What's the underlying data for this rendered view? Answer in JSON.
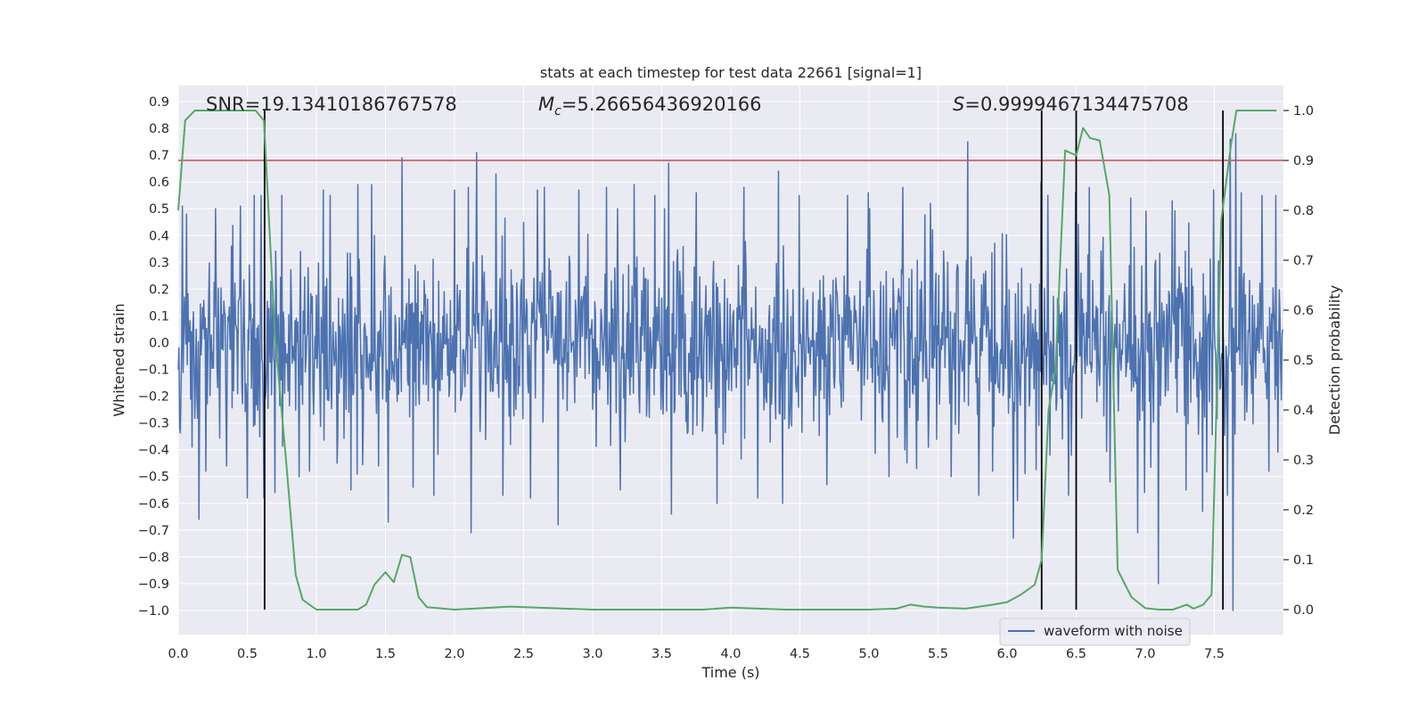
{
  "chart_data": {
    "type": "line",
    "title": "stats at each timestep for test data 22661 [signal=1]",
    "xlabel": "Time (s)",
    "ylabel": "Whitened strain",
    "ylabel_right": "Detection probability",
    "xlim": [
      0.0,
      8.0
    ],
    "ylim": [
      -1.09,
      0.96
    ],
    "ylim_right": [
      -0.05,
      1.05
    ],
    "x_ticks": [
      0.0,
      0.5,
      1.0,
      1.5,
      2.0,
      2.5,
      3.0,
      3.5,
      4.0,
      4.5,
      5.0,
      5.5,
      6.0,
      6.5,
      7.0,
      7.5
    ],
    "x_tick_labels": [
      "0.0",
      "0.5",
      "1.0",
      "1.5",
      "2.0",
      "2.5",
      "3.0",
      "3.5",
      "4.0",
      "4.5",
      "5.0",
      "5.5",
      "6.0",
      "6.5",
      "7.0",
      "7.5"
    ],
    "y_ticks": [
      -1.0,
      -0.9,
      -0.8,
      -0.7,
      -0.6,
      -0.5,
      -0.4,
      -0.3,
      -0.2,
      -0.1,
      0.0,
      0.1,
      0.2,
      0.3,
      0.4,
      0.5,
      0.6,
      0.7,
      0.8,
      0.9
    ],
    "y_tick_labels": [
      "−1.0",
      "−0.9",
      "−0.8",
      "−0.7",
      "−0.6",
      "−0.5",
      "−0.4",
      "−0.3",
      "−0.2",
      "−0.1",
      "0.0",
      "0.1",
      "0.2",
      "0.3",
      "0.4",
      "0.5",
      "0.6",
      "0.7",
      "0.8",
      "0.9"
    ],
    "y_ticks_right": [
      0.0,
      0.1,
      0.2,
      0.3,
      0.4,
      0.5,
      0.6,
      0.7,
      0.8,
      0.9,
      1.0
    ],
    "y_tick_labels_right": [
      "0.0",
      "0.1",
      "0.2",
      "0.3",
      "0.4",
      "0.5",
      "0.6",
      "0.7",
      "0.8",
      "0.9",
      "1.0"
    ],
    "annotations": {
      "snr": "SNR=19.13410186767578",
      "mc_symbol": "M",
      "mc_sub": "c",
      "mc_value": "=5.26656436920166",
      "s_symbol": "S",
      "s_value": "=0.9999467134475708"
    },
    "legend": {
      "label": "waveform with noise",
      "loc": "lower right"
    },
    "threshold": 0.9,
    "vlines": [
      0.625,
      6.25,
      6.5,
      7.5625
    ],
    "waveform": {
      "name": "waveform with noise",
      "n_samples": 1600,
      "noise_std": 0.17,
      "peaks": [
        [
          0.03,
          0.51
        ],
        [
          0.06,
          0.48
        ],
        [
          0.1,
          -0.39
        ],
        [
          0.15,
          -0.66
        ],
        [
          0.2,
          -0.48
        ],
        [
          0.27,
          0.5
        ],
        [
          0.35,
          -0.46
        ],
        [
          0.45,
          0.51
        ],
        [
          0.5,
          -0.58
        ],
        [
          0.55,
          0.55
        ],
        [
          0.6,
          0.55
        ],
        [
          0.62,
          -0.58
        ],
        [
          0.7,
          -0.56
        ],
        [
          0.75,
          0.55
        ],
        [
          0.95,
          -0.48
        ],
        [
          1.05,
          0.57
        ],
        [
          1.1,
          0.55
        ],
        [
          1.15,
          -0.45
        ],
        [
          1.25,
          -0.55
        ],
        [
          1.3,
          0.59
        ],
        [
          1.4,
          0.59
        ],
        [
          1.45,
          -0.46
        ],
        [
          1.52,
          -0.67
        ],
        [
          1.62,
          0.69
        ],
        [
          1.7,
          -0.54
        ],
        [
          1.85,
          -0.57
        ],
        [
          2.0,
          0.57
        ],
        [
          2.1,
          0.58
        ],
        [
          2.12,
          -0.71
        ],
        [
          2.16,
          0.71
        ],
        [
          2.3,
          0.63
        ],
        [
          2.35,
          -0.57
        ],
        [
          2.55,
          -0.58
        ],
        [
          2.6,
          0.57
        ],
        [
          2.65,
          0.58
        ],
        [
          2.75,
          -0.68
        ],
        [
          2.9,
          0.57
        ],
        [
          3.1,
          0.58
        ],
        [
          3.2,
          -0.55
        ],
        [
          3.3,
          0.59
        ],
        [
          3.45,
          0.55
        ],
        [
          3.55,
          0.67
        ],
        [
          3.57,
          -0.64
        ],
        [
          3.75,
          0.56
        ],
        [
          3.9,
          -0.6
        ],
        [
          4.1,
          0.58
        ],
        [
          4.2,
          -0.58
        ],
        [
          4.35,
          0.64
        ],
        [
          4.38,
          -0.6
        ],
        [
          4.5,
          0.55
        ],
        [
          4.7,
          -0.53
        ],
        [
          4.85,
          0.55
        ],
        [
          5.0,
          0.56
        ],
        [
          5.15,
          -0.5
        ],
        [
          5.25,
          0.58
        ],
        [
          5.35,
          -0.47
        ],
        [
          5.45,
          0.52
        ],
        [
          5.6,
          -0.5
        ],
        [
          5.72,
          0.75
        ],
        [
          5.8,
          -0.57
        ],
        [
          5.9,
          -0.48
        ],
        [
          6.05,
          -0.73
        ],
        [
          6.08,
          -0.59
        ],
        [
          6.25,
          0.6
        ],
        [
          6.3,
          0.55
        ],
        [
          6.45,
          -0.57
        ],
        [
          6.5,
          0.56
        ],
        [
          6.6,
          0.58
        ],
        [
          6.75,
          -0.52
        ],
        [
          6.9,
          0.54
        ],
        [
          6.95,
          -0.71
        ],
        [
          7.0,
          -0.56
        ],
        [
          7.1,
          -0.9
        ],
        [
          7.2,
          0.53
        ],
        [
          7.3,
          -0.55
        ],
        [
          7.42,
          -0.63
        ],
        [
          7.5,
          0.57
        ],
        [
          7.6,
          -0.57
        ],
        [
          7.62,
          0.76
        ],
        [
          7.64,
          -1.0
        ],
        [
          7.66,
          0.78
        ],
        [
          7.7,
          0.56
        ],
        [
          7.85,
          0.55
        ],
        [
          7.9,
          -0.48
        ],
        [
          7.95,
          0.55
        ]
      ]
    },
    "probability": {
      "name": "detection probability",
      "x": [
        0.0,
        0.05,
        0.12,
        0.2,
        0.3,
        0.4,
        0.5,
        0.56,
        0.62,
        0.7,
        0.78,
        0.85,
        0.9,
        1.0,
        1.2,
        1.3,
        1.36,
        1.42,
        1.5,
        1.56,
        1.62,
        1.68,
        1.74,
        1.8,
        2.0,
        2.2,
        2.4,
        2.6,
        3.0,
        3.4,
        3.8,
        4.0,
        4.2,
        4.4,
        4.8,
        5.0,
        5.2,
        5.3,
        5.4,
        5.5,
        5.7,
        5.85,
        5.9,
        6.0,
        6.1,
        6.2,
        6.25,
        6.3,
        6.35,
        6.42,
        6.5,
        6.55,
        6.6,
        6.67,
        6.74,
        6.8,
        6.9,
        7.0,
        7.1,
        7.2,
        7.3,
        7.35,
        7.42,
        7.48,
        7.55,
        7.62,
        7.66,
        7.75,
        7.8,
        7.95
      ],
      "values": [
        0.8,
        0.98,
        1.0,
        1.0,
        1.0,
        1.0,
        1.0,
        1.0,
        0.98,
        0.55,
        0.3,
        0.07,
        0.02,
        0.0,
        0.0,
        0.0,
        0.01,
        0.05,
        0.075,
        0.055,
        0.11,
        0.105,
        0.025,
        0.005,
        0.0,
        0.003,
        0.006,
        0.004,
        0.0,
        0.0,
        0.0,
        0.004,
        0.002,
        0.0,
        0.0,
        0.0,
        0.002,
        0.01,
        0.006,
        0.004,
        0.002,
        0.008,
        0.01,
        0.015,
        0.03,
        0.05,
        0.1,
        0.4,
        0.48,
        0.92,
        0.91,
        0.965,
        0.945,
        0.94,
        0.83,
        0.08,
        0.025,
        0.003,
        0.0,
        0.0,
        0.01,
        0.002,
        0.01,
        0.03,
        0.78,
        0.93,
        1.0,
        1.0,
        1.0,
        1.0
      ]
    },
    "colors": {
      "background": "#eaeaf2",
      "grid": "#ffffff",
      "waveform": "#4c72b0",
      "probability": "#55a868",
      "threshold": "#c44e52",
      "vline": "#000000",
      "text": "#262626"
    }
  }
}
